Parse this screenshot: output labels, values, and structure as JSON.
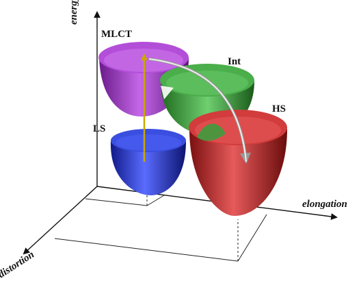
{
  "axes": {
    "energy": "energy",
    "elongation": "elongation",
    "distortion": "distortion"
  },
  "states": {
    "mlct": {
      "label": "MLCT",
      "color": "#a23fc4"
    },
    "int": {
      "label": "Int",
      "color": "#3e9c3e"
    },
    "hs": {
      "label": "HS",
      "color": "#c92a2a"
    },
    "ls": {
      "label": "LS",
      "color": "#2b3fd6"
    }
  },
  "arrows": {
    "excitation_color": "#c9a800",
    "relaxation_color": "#e6e6e6"
  }
}
